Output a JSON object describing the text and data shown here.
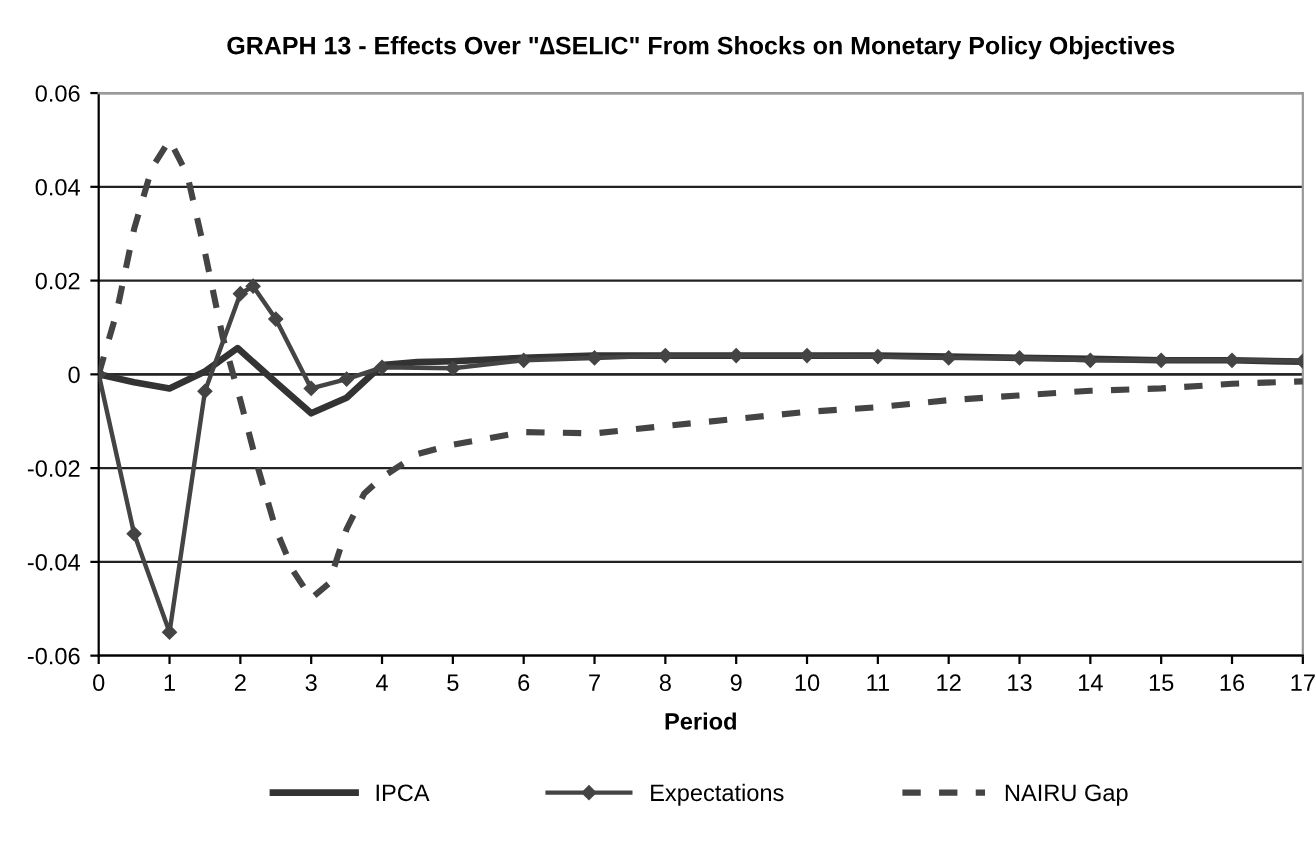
{
  "chart_data": {
    "type": "line",
    "title": "GRAPH 13 - Effects Over \"∆SELIC\" From Shocks on Monetary Policy Objectives",
    "xlabel": "Period",
    "xlim": [
      0,
      17
    ],
    "xticks": [
      0,
      1,
      2,
      3,
      4,
      5,
      6,
      7,
      8,
      9,
      10,
      11,
      12,
      13,
      14,
      15,
      16,
      17
    ],
    "ylim": [
      -0.06,
      0.06
    ],
    "yticks": [
      {
        "value": -0.06,
        "label": "-0.06"
      },
      {
        "value": -0.04,
        "label": "-0.04"
      },
      {
        "value": -0.02,
        "label": "-0.02"
      },
      {
        "value": 0,
        "label": "0"
      },
      {
        "value": 0.02,
        "label": "0.02"
      },
      {
        "value": 0.04,
        "label": "0.04"
      },
      {
        "value": 0.06,
        "label": "0.06"
      }
    ],
    "grid": "y",
    "legend": "bottom",
    "series": [
      {
        "name": "IPCA",
        "color": "#333333",
        "line_style": "solid",
        "marker": "none",
        "x": [
          0,
          0.5,
          1,
          1.5,
          1.96,
          2.5,
          3,
          3.5,
          4,
          4.5,
          5,
          6,
          7,
          8,
          9,
          10,
          11,
          12,
          13,
          14,
          15,
          16,
          17
        ],
        "values": [
          0,
          -0.0017,
          -0.003,
          0.0006,
          0.0056,
          -0.0017,
          -0.0083,
          -0.005,
          0.002,
          0.0026,
          0.0028,
          0.0035,
          0.004,
          0.004,
          0.004,
          0.004,
          0.004,
          0.0038,
          0.0035,
          0.0033,
          0.003,
          0.003,
          0.0027
        ]
      },
      {
        "name": "Expectations",
        "color": "#444444",
        "line_style": "solid",
        "marker": "diamond",
        "x": [
          0,
          0.5,
          1,
          1.5,
          2,
          2.18,
          2.5,
          3,
          3.5,
          4,
          5,
          6,
          7,
          8,
          9,
          10,
          11,
          12,
          13,
          14,
          15,
          16,
          17
        ],
        "values": [
          0,
          -0.034,
          -0.055,
          -0.0036,
          0.0172,
          0.0188,
          0.0118,
          -0.003,
          -0.001,
          0.0015,
          0.0013,
          0.003,
          0.0035,
          0.004,
          0.004,
          0.004,
          0.0038,
          0.0035,
          0.0035,
          0.003,
          0.003,
          0.003,
          0.0028
        ]
      },
      {
        "name": "NAIRU Gap",
        "color": "#444444",
        "line_style": "dashed",
        "marker": "none",
        "x": [
          0,
          0.25,
          0.5,
          0.75,
          1,
          1.25,
          1.5,
          1.75,
          2,
          2.25,
          2.5,
          2.75,
          3,
          3.25,
          3.5,
          3.75,
          4,
          4.5,
          5,
          6,
          7,
          8,
          9,
          10,
          11,
          12,
          13,
          14,
          15,
          16,
          17
        ],
        "values": [
          0,
          0.013,
          0.031,
          0.044,
          0.05,
          0.0426,
          0.026,
          0.008,
          -0.0055,
          -0.02,
          -0.033,
          -0.042,
          -0.0478,
          -0.0446,
          -0.033,
          -0.0254,
          -0.022,
          -0.017,
          -0.015,
          -0.0123,
          -0.0126,
          -0.011,
          -0.0095,
          -0.008,
          -0.007,
          -0.0055,
          -0.0045,
          -0.0035,
          -0.003,
          -0.002,
          -0.0015
        ]
      }
    ]
  }
}
